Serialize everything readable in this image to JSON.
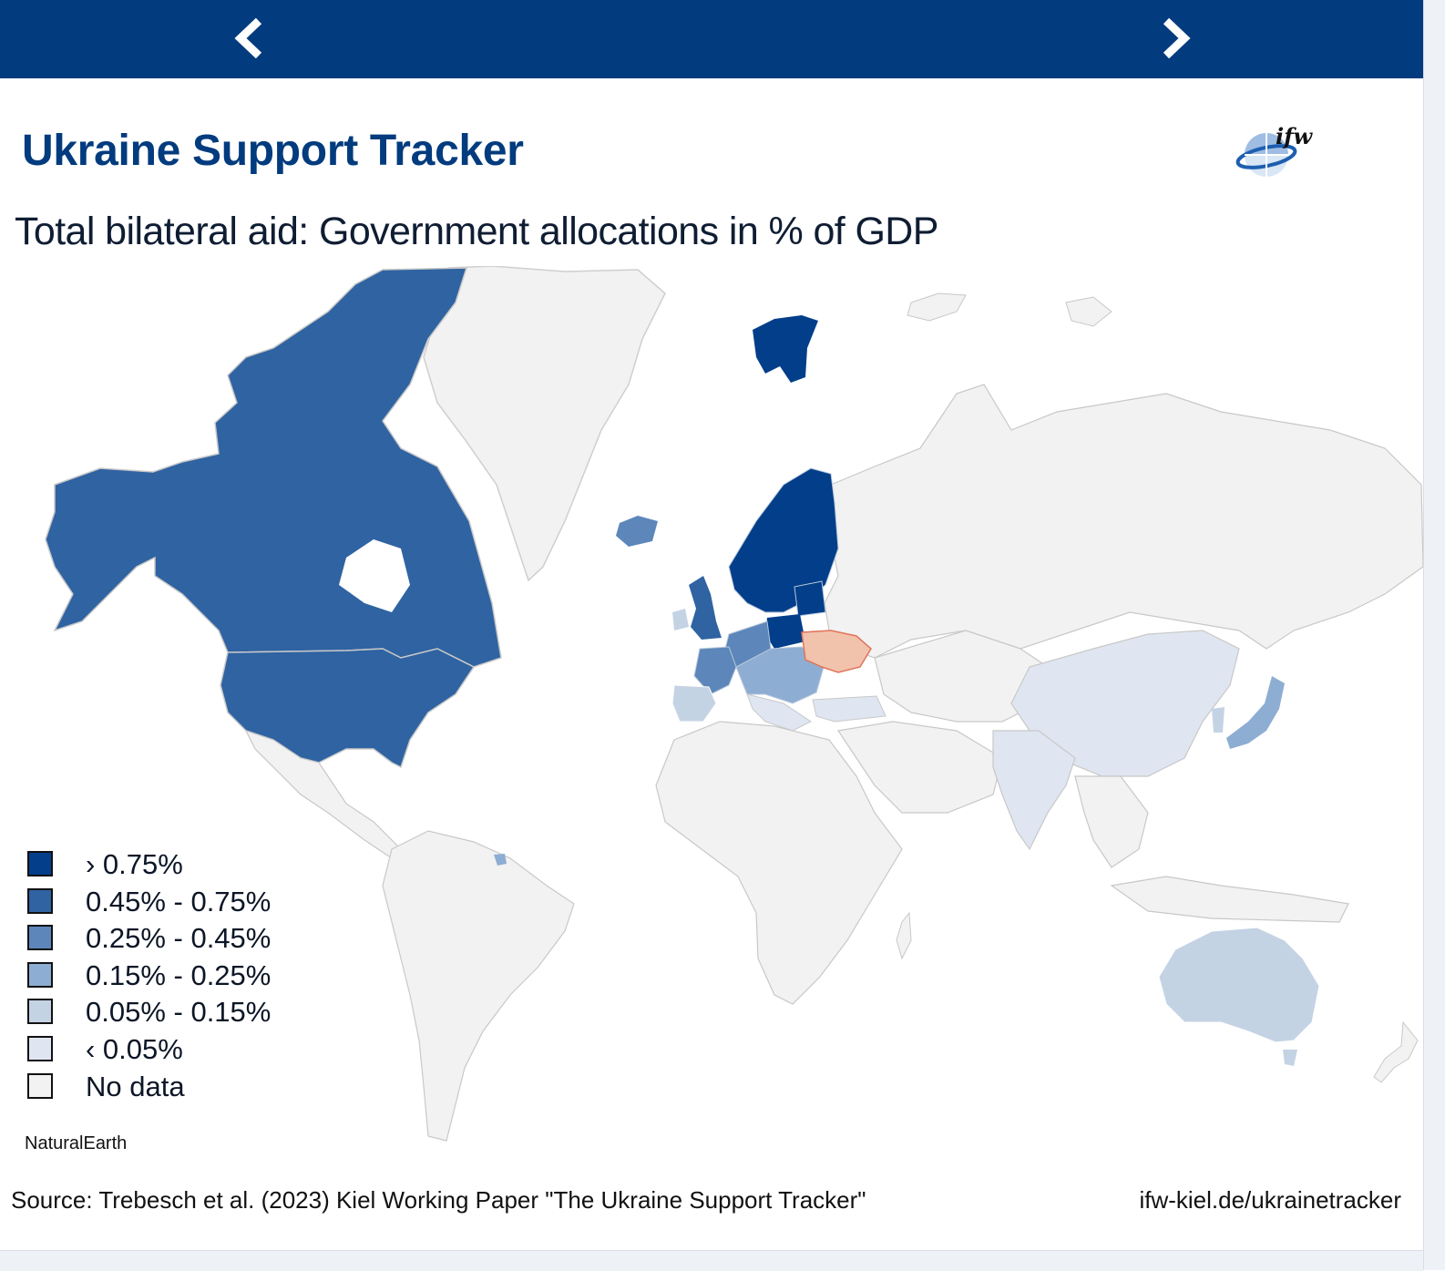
{
  "nav": {
    "prev_icon": "chevron-left-icon",
    "next_icon": "chevron-right-icon",
    "bar_color": "#023b7e"
  },
  "header": {
    "title": "Ukraine Support Tracker",
    "logo_text": "ifw"
  },
  "subtitle": "Total bilateral aid: Government allocations in % of GDP",
  "legend": {
    "items": [
      {
        "label": "› 0.75%",
        "color": "#023e8a"
      },
      {
        "label": "0.45% - 0.75%",
        "color": "#2f63a2"
      },
      {
        "label": "0.25% - 0.45%",
        "color": "#5d87ba"
      },
      {
        "label": "0.15% - 0.25%",
        "color": "#8eadd2"
      },
      {
        "label": "0.05% - 0.15%",
        "color": "#c4d3e4"
      },
      {
        "label": "‹ 0.05%",
        "color": "#dfe6f1"
      },
      {
        "label": "No data",
        "color": "#f2f2f2"
      }
    ]
  },
  "map": {
    "highlight_color": "#f2c3ac",
    "highlight_border": "#e0755a",
    "regions": [
      {
        "name": "Canada",
        "bin": "0.45% - 0.75%"
      },
      {
        "name": "United States",
        "bin": "0.45% - 0.75%"
      },
      {
        "name": "Norway",
        "bin": "› 0.75%"
      },
      {
        "name": "Sweden",
        "bin": "› 0.75%"
      },
      {
        "name": "Finland",
        "bin": "› 0.75%"
      },
      {
        "name": "Poland",
        "bin": "› 0.75%"
      },
      {
        "name": "Baltic states",
        "bin": "› 0.75%"
      },
      {
        "name": "Svalbard",
        "bin": "› 0.75%"
      },
      {
        "name": "United Kingdom",
        "bin": "0.45% - 0.75%"
      },
      {
        "name": "Iceland",
        "bin": "0.25% - 0.45%"
      },
      {
        "name": "Germany",
        "bin": "0.25% - 0.45%"
      },
      {
        "name": "France",
        "bin": "0.25% - 0.45%"
      },
      {
        "name": "Romania",
        "bin": "0.15% - 0.25%"
      },
      {
        "name": "Japan",
        "bin": "0.15% - 0.25%"
      },
      {
        "name": "Spain",
        "bin": "0.05% - 0.15%"
      },
      {
        "name": "Australia",
        "bin": "0.05% - 0.15%"
      },
      {
        "name": "China",
        "bin": "‹ 0.05%"
      },
      {
        "name": "India",
        "bin": "‹ 0.05%"
      },
      {
        "name": "Turkey",
        "bin": "‹ 0.05%"
      },
      {
        "name": "Ukraine",
        "bin": "recipient"
      }
    ]
  },
  "credit": "NaturalEarth",
  "footer": {
    "source": "Source: Trebesch et al. (2023) Kiel Working Paper \"The Ukraine Support Tracker\"",
    "link": "ifw-kiel.de/ukrainetracker"
  }
}
